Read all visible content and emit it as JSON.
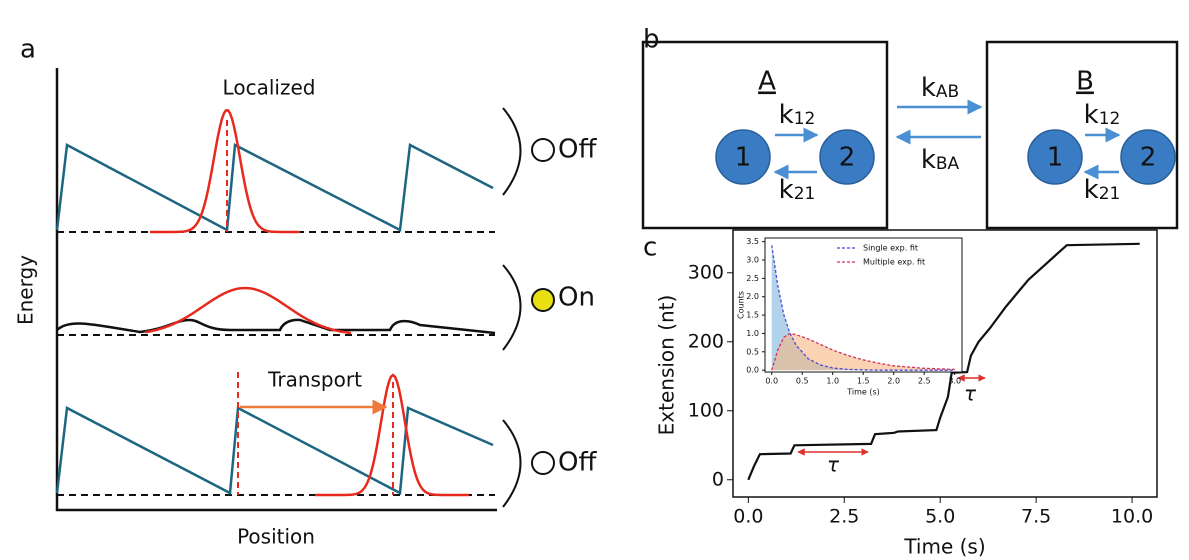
{
  "panel_a": {
    "label": "a",
    "top_state": "Localized",
    "top_signal": "Off",
    "middle_signal": "On",
    "bottom_state": "Transport",
    "bottom_signal": "Off",
    "y_label": "Energy",
    "x_label": "Position"
  },
  "panel_b": {
    "label": "b",
    "state_a": "A",
    "state_b": "B",
    "a_node_1": "1",
    "a_node_2": "2",
    "b_node_1": "1",
    "b_node_2": "2",
    "k12": {
      "symbol": "k",
      "subscript": "12"
    },
    "k21": {
      "symbol": "k",
      "subscript": "21"
    },
    "kab": {
      "symbol": "k",
      "subscript": "AB"
    },
    "kba": {
      "symbol": "k",
      "subscript": "BA"
    }
  },
  "panel_c": {
    "label": "c"
  },
  "chart_data": [
    {
      "type": "line",
      "xlabel": "Time (s)",
      "ylabel": "Extension (nt)",
      "color": "#111111",
      "x": [
        0,
        0.15,
        0.3,
        1.1,
        1.2,
        3.2,
        3.3,
        3.8,
        3.9,
        4.9,
        5.0,
        5.2,
        5.3,
        5.7,
        5.8,
        6.0,
        6.3,
        6.7,
        7.0,
        7.3,
        7.7,
        8.0,
        8.3,
        10.2
      ],
      "values": [
        0,
        20,
        37,
        38,
        50,
        52,
        66,
        68,
        70,
        72,
        90,
        120,
        155,
        156,
        180,
        200,
        220,
        250,
        270,
        290,
        310,
        325,
        340,
        342
      ],
      "annotations": [
        "τ",
        "τ"
      ],
      "xlim": [
        -0.4,
        10.65
      ],
      "ylim": [
        -25,
        362
      ],
      "xticks": [
        {
          "value": 0,
          "label": "0.0"
        },
        {
          "value": 2.5,
          "label": "2.5"
        },
        {
          "value": 5,
          "label": "5.0"
        },
        {
          "value": 7.5,
          "label": "7.5"
        },
        {
          "value": 10,
          "label": "10.0"
        }
      ],
      "yticks": [
        0,
        100,
        200,
        300
      ]
    },
    {
      "type": "line",
      "xlabel": "Time (s)",
      "ylabel": "Counts",
      "x": [
        0,
        0.1,
        0.2,
        0.3,
        0.4,
        0.6,
        0.8,
        1.0,
        1.25,
        1.5,
        1.75,
        2.0,
        2.5,
        3.0
      ],
      "series": [
        {
          "name": "Single exp. fit",
          "color": "#4b4bd6",
          "fill": "#7fb3dc",
          "values": [
            3.4,
            2.3,
            1.5,
            1.0,
            0.68,
            0.31,
            0.14,
            0.06,
            0.02,
            0.01,
            0,
            0,
            0,
            0
          ]
        },
        {
          "name": "Multiple exp. fit",
          "color": "#d4305a",
          "fill": "#f5b582",
          "values": [
            0,
            0.55,
            0.9,
            1.0,
            0.97,
            0.85,
            0.7,
            0.55,
            0.4,
            0.28,
            0.19,
            0.12,
            0.05,
            0.02
          ]
        }
      ],
      "xlim": [
        -0.11,
        3.12
      ],
      "ylim": [
        -0.05,
        3.6
      ],
      "xticks": [
        {
          "value": 0,
          "label": "0.0"
        },
        {
          "value": 0.5,
          "label": "0.5"
        },
        {
          "value": 1,
          "label": "1.0"
        },
        {
          "value": 1.5,
          "label": "1.5"
        },
        {
          "value": 2,
          "label": "2.0"
        },
        {
          "value": 2.5,
          "label": "2.5"
        },
        {
          "value": 3,
          "label": "3.0"
        }
      ],
      "yticks": [
        {
          "value": 0,
          "label": "0.0"
        },
        {
          "value": 0.5,
          "label": "0.5"
        },
        {
          "value": 1,
          "label": "1.0"
        },
        {
          "value": 1.5,
          "label": "1.5"
        },
        {
          "value": 2,
          "label": "2.0"
        },
        {
          "value": 2.5,
          "label": "2.5"
        },
        {
          "value": 3,
          "label": "3.0"
        },
        {
          "value": 3.5,
          "label": "3.5"
        }
      ]
    }
  ]
}
